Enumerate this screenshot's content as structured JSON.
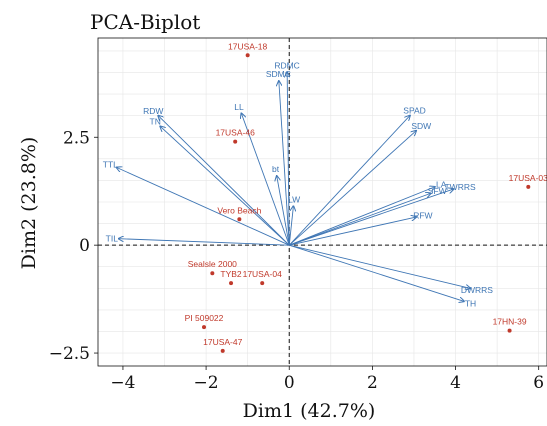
{
  "chart_data": {
    "type": "scatter",
    "title": "PCA-Biplot",
    "xlabel": "Dim1 (42.7%)",
    "ylabel": "Dim2 (23.8%)",
    "xlim": [
      -4.6,
      6.2
    ],
    "ylim": [
      -2.8,
      4.8
    ],
    "xticks": [
      -4,
      -2,
      0,
      2,
      4,
      6
    ],
    "xtick_labels": [
      "−4",
      "−2",
      "0",
      "2",
      "4",
      "6"
    ],
    "yticks": [
      -2.5,
      0,
      2.5
    ],
    "ytick_labels": [
      "−2.5",
      "0",
      "2.5"
    ],
    "grid": true,
    "reference_lines": {
      "x": 0,
      "y": 0,
      "style": "dashed"
    },
    "colors": {
      "variables": "#3f76b4",
      "individuals": "#c0392b"
    },
    "individuals": [
      {
        "label": "17USA-18",
        "x": -1.0,
        "y": 4.4
      },
      {
        "label": "17USA-46",
        "x": -1.3,
        "y": 2.4
      },
      {
        "label": "17USA-03",
        "x": 5.75,
        "y": 1.35
      },
      {
        "label": "Vero Beach",
        "x": -1.2,
        "y": 0.6
      },
      {
        "label": "Sealsle 2000",
        "x": -1.85,
        "y": -0.65
      },
      {
        "label": "TYB2",
        "x": -1.4,
        "y": -0.88
      },
      {
        "label": "17USA-04",
        "x": -0.65,
        "y": -0.88
      },
      {
        "label": "PI 509022",
        "x": -2.05,
        "y": -1.9
      },
      {
        "label": "17USA-47",
        "x": -1.6,
        "y": -2.45
      },
      {
        "label": "17HN-39",
        "x": 5.3,
        "y": -1.98
      }
    ],
    "variables": [
      {
        "label": "RDW",
        "x": -3.15,
        "y": 3.0
      },
      {
        "label": "TN",
        "x": -3.1,
        "y": 2.75
      },
      {
        "label": "TTL",
        "x": -4.15,
        "y": 1.8
      },
      {
        "label": "TIL",
        "x": -4.1,
        "y": 0.15
      },
      {
        "label": "LL",
        "x": -1.15,
        "y": 3.05
      },
      {
        "label": "RDMC",
        "x": -0.05,
        "y": 4.0
      },
      {
        "label": "SDMC",
        "x": -0.25,
        "y": 3.8
      },
      {
        "label": "bt",
        "x": -0.3,
        "y": 1.6
      },
      {
        "label": "LW",
        "x": 0.1,
        "y": 0.9
      },
      {
        "label": "SPAD",
        "x": 2.9,
        "y": 3.0
      },
      {
        "label": "SDW",
        "x": 3.05,
        "y": 2.65
      },
      {
        "label": "LA",
        "x": 3.5,
        "y": 1.35
      },
      {
        "label": "TWRRS",
        "x": 3.95,
        "y": 1.3
      },
      {
        "label": "SFW",
        "x": 3.4,
        "y": 1.2
      },
      {
        "label": "RFW",
        "x": 3.05,
        "y": 0.65
      },
      {
        "label": "DWRRS",
        "x": 4.35,
        "y": -1.0
      },
      {
        "label": "TH",
        "x": 4.2,
        "y": -1.3
      }
    ]
  }
}
